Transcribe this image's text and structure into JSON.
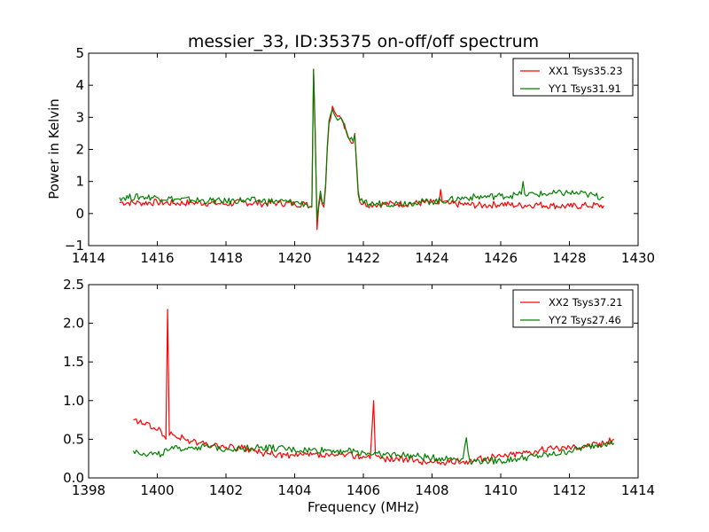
{
  "figure": {
    "title": "messier_33, ID:35375 on-off/off spectrum",
    "xlabel": "Frequency (MHz)",
    "ylabel": "Power in Kelvin"
  },
  "chart_data": [
    {
      "type": "line",
      "title": "messier_33, ID:35375 on-off/off spectrum",
      "xlabel": "",
      "ylabel": "Power in Kelvin",
      "xlim": [
        1414,
        1430
      ],
      "ylim": [
        -1,
        5
      ],
      "xticks": [
        1414,
        1416,
        1418,
        1420,
        1422,
        1424,
        1426,
        1428,
        1430
      ],
      "yticks": [
        -1,
        0,
        1,
        2,
        3,
        4,
        5
      ],
      "ytick_labels": [
        "−1",
        "0",
        "1",
        "2",
        "3",
        "4",
        "5"
      ],
      "grid": false,
      "legend": "top-right",
      "series": [
        {
          "name": "XX1 Tsys35.23",
          "color": "#ff0000",
          "x": [
            1414.9,
            1415.5,
            1416.0,
            1416.5,
            1417.0,
            1417.5,
            1418.0,
            1418.5,
            1419.0,
            1419.5,
            1420.0,
            1420.3,
            1420.5,
            1420.55,
            1420.6,
            1420.65,
            1420.7,
            1420.75,
            1420.8,
            1420.85,
            1420.9,
            1420.95,
            1421.0,
            1421.1,
            1421.15,
            1421.2,
            1421.3,
            1421.4,
            1421.5,
            1421.6,
            1421.7,
            1421.75,
            1421.8,
            1421.85,
            1421.9,
            1422.0,
            1422.3,
            1422.6,
            1423.0,
            1423.5,
            1424.0,
            1424.2,
            1424.25,
            1424.3,
            1424.5,
            1425.0,
            1425.5,
            1426.0,
            1426.5,
            1427.0,
            1427.5,
            1428.0,
            1428.5,
            1429.0
          ],
          "values": [
            0.35,
            0.33,
            0.35,
            0.32,
            0.34,
            0.33,
            0.3,
            0.35,
            0.31,
            0.33,
            0.3,
            0.3,
            0.2,
            4.5,
            2.5,
            -0.5,
            0.2,
            0.55,
            0.3,
            0.2,
            0.8,
            2.0,
            2.8,
            3.35,
            3.2,
            3.1,
            3.05,
            2.9,
            2.6,
            2.3,
            2.2,
            2.5,
            1.5,
            0.6,
            0.35,
            0.3,
            0.28,
            0.3,
            0.3,
            0.32,
            0.35,
            0.3,
            0.75,
            0.35,
            0.3,
            0.28,
            0.25,
            0.3,
            0.25,
            0.28,
            0.25,
            0.22,
            0.25,
            0.25
          ]
        },
        {
          "name": "YY1 Tsys31.91",
          "color": "#008000",
          "x": [
            1414.9,
            1415.5,
            1416.0,
            1416.5,
            1417.0,
            1417.5,
            1418.0,
            1418.5,
            1419.0,
            1419.5,
            1420.0,
            1420.3,
            1420.5,
            1420.55,
            1420.6,
            1420.65,
            1420.7,
            1420.75,
            1420.8,
            1420.85,
            1420.9,
            1420.95,
            1421.0,
            1421.1,
            1421.15,
            1421.2,
            1421.3,
            1421.4,
            1421.5,
            1421.6,
            1421.7,
            1421.75,
            1421.8,
            1421.85,
            1421.9,
            1422.0,
            1422.3,
            1422.6,
            1423.0,
            1423.5,
            1424.0,
            1424.5,
            1425.0,
            1425.5,
            1426.0,
            1426.5,
            1426.6,
            1426.65,
            1426.7,
            1427.0,
            1427.5,
            1428.0,
            1428.5,
            1429.0
          ],
          "values": [
            0.5,
            0.52,
            0.5,
            0.45,
            0.42,
            0.4,
            0.38,
            0.42,
            0.4,
            0.38,
            0.35,
            0.3,
            0.2,
            4.5,
            2.3,
            -0.2,
            0.3,
            0.7,
            0.35,
            0.3,
            0.9,
            2.1,
            2.9,
            3.25,
            3.1,
            3.0,
            2.95,
            2.85,
            2.55,
            2.3,
            2.25,
            2.45,
            1.6,
            0.7,
            0.4,
            0.32,
            0.3,
            0.32,
            0.32,
            0.35,
            0.38,
            0.42,
            0.5,
            0.52,
            0.55,
            0.58,
            0.6,
            1.0,
            0.6,
            0.6,
            0.62,
            0.65,
            0.6,
            0.5
          ]
        }
      ]
    },
    {
      "type": "line",
      "title": "",
      "xlabel": "Frequency (MHz)",
      "ylabel": "",
      "xlim": [
        1398,
        1414
      ],
      "ylim": [
        0,
        2.5
      ],
      "xticks": [
        1398,
        1400,
        1402,
        1404,
        1406,
        1408,
        1410,
        1412,
        1414
      ],
      "yticks": [
        0,
        0.5,
        1.0,
        1.5,
        2.0,
        2.5
      ],
      "ytick_labels": [
        "0.0",
        "0.5",
        "1.0",
        "1.5",
        "2.0",
        "2.5"
      ],
      "grid": false,
      "legend": "top-right",
      "series": [
        {
          "name": "XX2 Tsys37.21",
          "color": "#ff0000",
          "x": [
            1399.3,
            1399.6,
            1399.9,
            1400.1,
            1400.25,
            1400.3,
            1400.35,
            1400.5,
            1400.8,
            1401.2,
            1401.6,
            1402.0,
            1402.5,
            1403.0,
            1403.5,
            1404.0,
            1404.5,
            1405.0,
            1405.5,
            1406.0,
            1406.2,
            1406.3,
            1406.35,
            1406.4,
            1406.6,
            1407.0,
            1407.5,
            1408.0,
            1408.5,
            1409.0,
            1409.5,
            1410.0,
            1410.5,
            1411.0,
            1411.5,
            1412.0,
            1412.5,
            1413.0,
            1413.3
          ],
          "values": [
            0.75,
            0.7,
            0.65,
            0.62,
            0.5,
            2.18,
            0.55,
            0.55,
            0.5,
            0.45,
            0.42,
            0.4,
            0.38,
            0.33,
            0.3,
            0.28,
            0.3,
            0.28,
            0.3,
            0.28,
            0.25,
            1.0,
            0.3,
            0.28,
            0.25,
            0.25,
            0.22,
            0.2,
            0.2,
            0.22,
            0.25,
            0.28,
            0.32,
            0.35,
            0.38,
            0.4,
            0.42,
            0.45,
            0.5
          ]
        },
        {
          "name": "YY2 Tsys27.46",
          "color": "#008000",
          "x": [
            1399.3,
            1399.6,
            1400.0,
            1400.3,
            1400.6,
            1401.0,
            1401.5,
            1402.0,
            1402.5,
            1403.0,
            1403.5,
            1404.0,
            1404.5,
            1405.0,
            1405.5,
            1406.0,
            1406.5,
            1407.0,
            1407.5,
            1408.0,
            1408.5,
            1408.9,
            1409.0,
            1409.1,
            1409.5,
            1410.0,
            1410.5,
            1411.0,
            1411.5,
            1412.0,
            1412.5,
            1413.0,
            1413.3
          ],
          "values": [
            0.35,
            0.32,
            0.3,
            0.35,
            0.38,
            0.4,
            0.4,
            0.38,
            0.38,
            0.4,
            0.38,
            0.36,
            0.36,
            0.36,
            0.35,
            0.33,
            0.3,
            0.3,
            0.28,
            0.26,
            0.25,
            0.25,
            0.52,
            0.22,
            0.22,
            0.22,
            0.25,
            0.28,
            0.3,
            0.35,
            0.4,
            0.45,
            0.45
          ]
        }
      ]
    }
  ]
}
